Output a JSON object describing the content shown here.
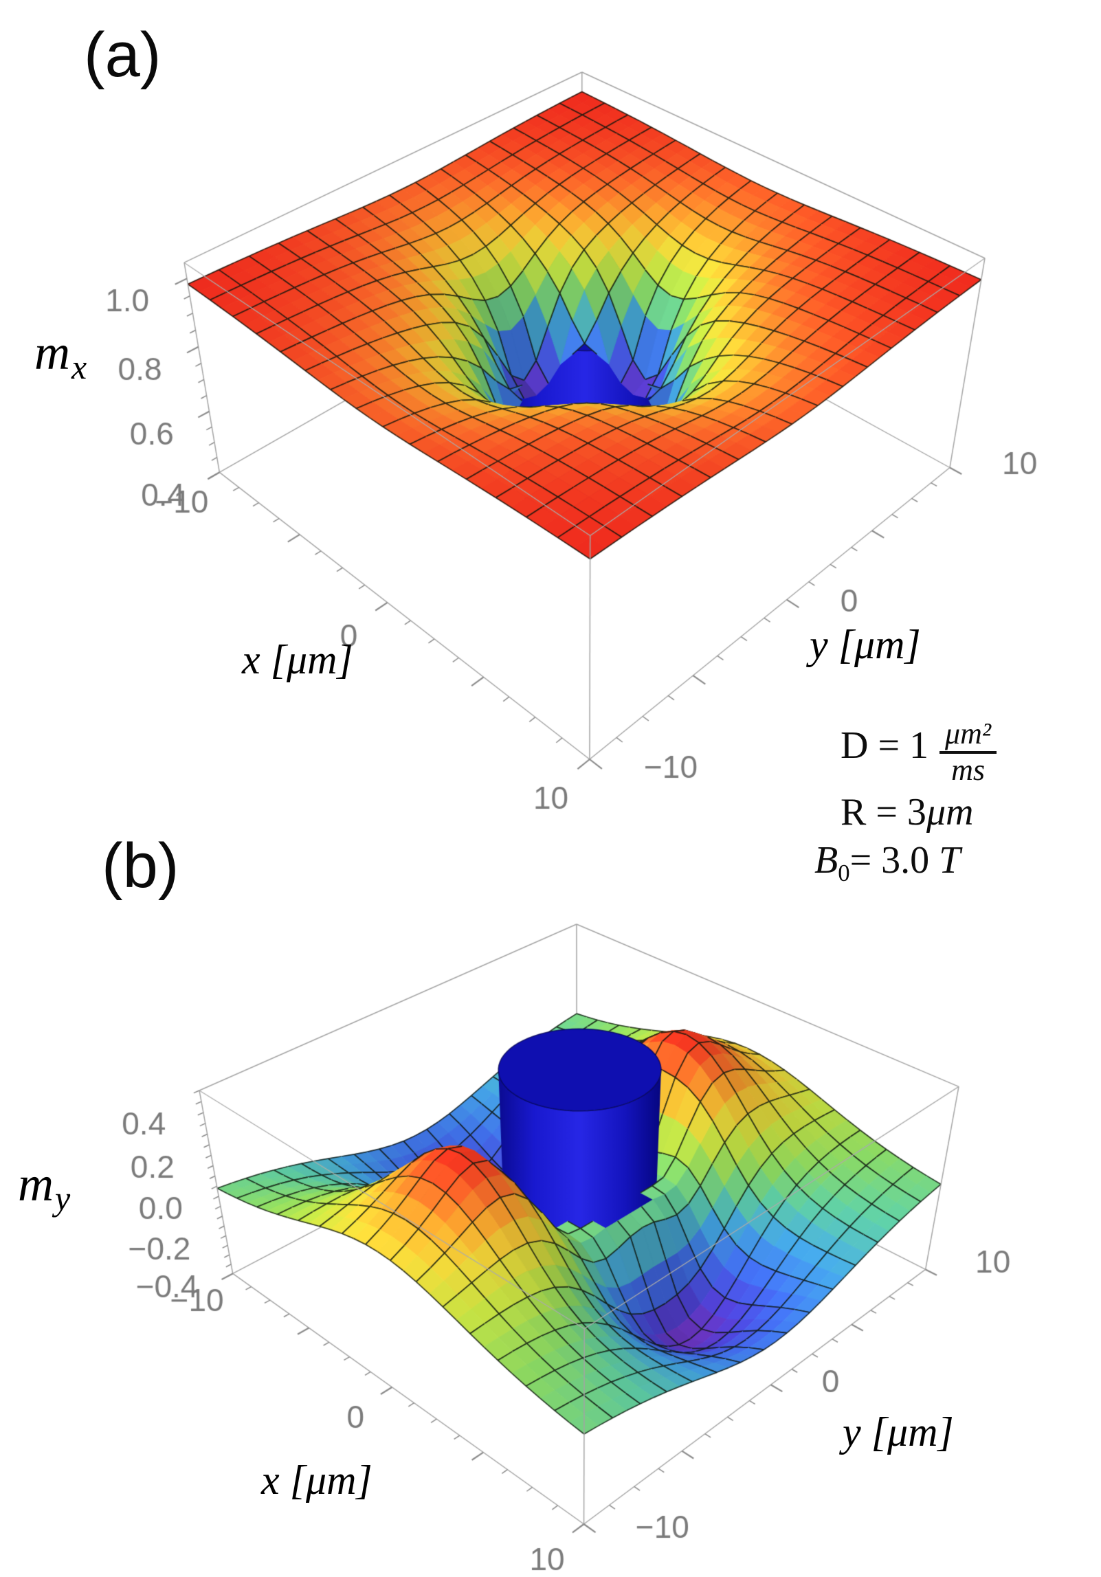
{
  "figure": {
    "background": "#ffffff"
  },
  "annotations": {
    "line1": {
      "lhs": "D = 1",
      "frac_num": "μm²",
      "frac_den": "ms"
    },
    "line2": {
      "pre": "R = 3",
      "unit": "μm"
    },
    "line3": {
      "base": "B",
      "sub": "0",
      "rest": "= 3.0 ",
      "unit": "T"
    }
  },
  "colors": {
    "box_edge": "#a4a4a4",
    "box_edge_front_top": "#ababab",
    "tick_mark": "#8a8a8a",
    "tick_text": "#7b7b7b",
    "mesh": "rgba(15,22,15,0.8)",
    "cylinder_body_stops": [
      "#0b0b92",
      "#1919cf",
      "#2727e6",
      "#1414bd",
      "#060680"
    ],
    "cylinder_top": "#0f0fb0",
    "cylinder_top_stroke": "rgba(5,5,85,0.8)"
  },
  "colormap": [
    [
      0.0,
      [
        100,
        45,
        170
      ]
    ],
    [
      0.1,
      [
        72,
        64,
        205
      ]
    ],
    [
      0.22,
      [
        62,
        105,
        225
      ]
    ],
    [
      0.34,
      [
        64,
        155,
        215
      ]
    ],
    [
      0.45,
      [
        90,
        195,
        155
      ]
    ],
    [
      0.55,
      [
        135,
        210,
        95
      ]
    ],
    [
      0.65,
      [
        190,
        218,
        65
      ]
    ],
    [
      0.75,
      [
        230,
        205,
        55
      ]
    ],
    [
      0.84,
      [
        240,
        160,
        45
      ]
    ],
    [
      0.92,
      [
        238,
        100,
        40
      ]
    ],
    [
      1.0,
      [
        225,
        40,
        28
      ]
    ]
  ],
  "chart_data": [
    {
      "id": "a",
      "type": "surface3d",
      "panel_label": "(a)",
      "zlabel": {
        "base": "m",
        "sub": "x"
      },
      "xlabel": "x [μm]",
      "ylabel": "y [μm]",
      "x_range": [
        -10,
        10
      ],
      "y_range": [
        -10,
        10
      ],
      "z_box": [
        0.4,
        1.045
      ],
      "x_ticks": {
        "labeled": [
          {
            "v": -10,
            "t": "−10"
          },
          {
            "v": 0,
            "t": "0"
          },
          {
            "v": 10,
            "t": "10"
          }
        ],
        "major": [
          -10,
          -5,
          0,
          5,
          10
        ],
        "minor_step": 1.25
      },
      "y_ticks": {
        "labeled": [
          {
            "v": -10,
            "t": "−10"
          },
          {
            "v": 0,
            "t": "0"
          },
          {
            "v": 10,
            "t": "10"
          }
        ],
        "major": [
          -10,
          -5,
          0,
          5,
          10
        ],
        "minor_step": 1.25
      },
      "z_ticks": {
        "labeled": [
          {
            "v": 0.4,
            "t": "0.4"
          },
          {
            "v": 0.6,
            "t": "0.6"
          },
          {
            "v": 0.8,
            "t": "0.8"
          },
          {
            "v": 1.0,
            "t": "1.0"
          }
        ],
        "minor_step": 0.05
      },
      "surface": {
        "kind": "mx",
        "R": 3,
        "base": 1,
        "edge_coef": 0.018,
        "edge_pow": 0.8,
        "dip_coef": 0.52,
        "dip_pow": 2.2,
        "iso": 0.62,
        "aniso": 0.38,
        "far_field_value": 0.95,
        "min_value_at_wall": 0.46
      },
      "cylinder": {
        "radius": 3,
        "z_top": 0.93
      },
      "mesh_divisions": 15
    },
    {
      "id": "b",
      "type": "surface3d",
      "panel_label": "(b)",
      "zlabel": {
        "base": "m",
        "sub": "y"
      },
      "xlabel": "x [μm]",
      "ylabel": "y [μm]",
      "x_range": [
        -10,
        10
      ],
      "y_range": [
        -10,
        10
      ],
      "z_box": [
        -0.44,
        0.46
      ],
      "x_ticks": {
        "labeled": [
          {
            "v": -10,
            "t": "−10"
          },
          {
            "v": 0,
            "t": "0"
          },
          {
            "v": 10,
            "t": "10"
          }
        ],
        "major": [
          -10,
          -5,
          0,
          5,
          10
        ],
        "minor_step": 1.25
      },
      "y_ticks": {
        "labeled": [
          {
            "v": -10,
            "t": "−10"
          },
          {
            "v": 0,
            "t": "0"
          },
          {
            "v": 10,
            "t": "10"
          }
        ],
        "major": [
          -10,
          -5,
          0,
          5,
          10
        ],
        "minor_step": 1.25
      },
      "z_ticks": {
        "labeled": [
          {
            "v": -0.4,
            "t": "−0.4"
          },
          {
            "v": -0.2,
            "t": "−0.2"
          },
          {
            "v": 0.0,
            "t": "0.0"
          },
          {
            "v": 0.2,
            "t": "0.2"
          },
          {
            "v": 0.4,
            "t": "0.4"
          }
        ],
        "minor_step": 0.05
      },
      "surface": {
        "kind": "my",
        "R": 3,
        "amp": 2.45,
        "damp_width": 2.6,
        "power": 2,
        "peak_value": 0.44,
        "lobe_pattern": "positive along ±y, negative along ±x"
      },
      "cylinder": {
        "radius": 3,
        "z_top": 0.55
      },
      "mesh_divisions": 15
    }
  ]
}
